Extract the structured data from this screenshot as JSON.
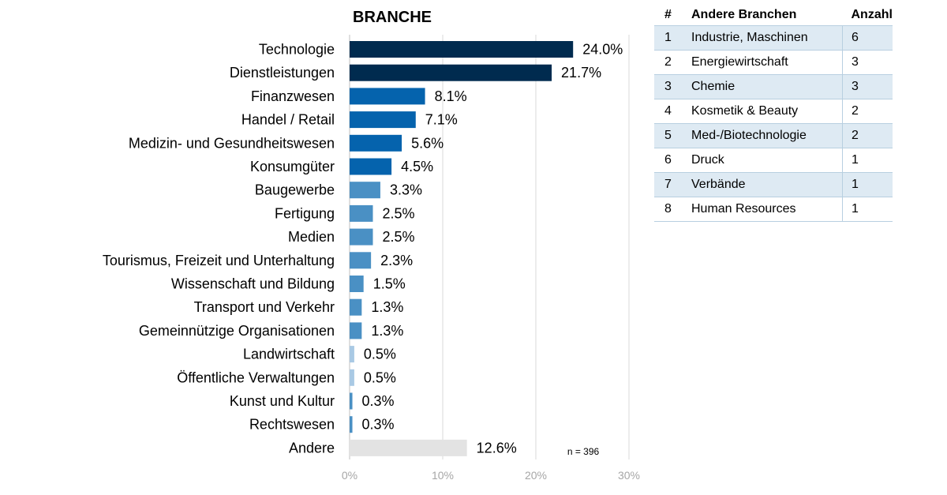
{
  "chart_data": {
    "type": "bar",
    "orientation": "horizontal",
    "title": "BRANCHE",
    "categories": [
      "Technologie",
      "Dienstleistungen",
      "Finanzwesen",
      "Handel / Retail",
      "Medizin- und Gesundheitswesen",
      "Konsumgüter",
      "Baugewerbe",
      "Fertigung",
      "Medien",
      "Tourismus, Freizeit und Unterhaltung",
      "Wissenschaft und Bildung",
      "Transport und Verkehr",
      "Gemeinnützige Organisationen",
      "Landwirtschaft",
      "Öffentliche Verwaltungen",
      "Kunst und Kultur",
      "Rechtswesen",
      "Andere"
    ],
    "values": [
      24.0,
      21.7,
      8.1,
      7.1,
      5.6,
      4.5,
      3.3,
      2.5,
      2.5,
      2.3,
      1.5,
      1.3,
      1.3,
      0.5,
      0.5,
      0.3,
      0.3,
      12.6
    ],
    "value_labels": [
      "24.0%",
      "21.7%",
      "8.1%",
      "7.1%",
      "5.6%",
      "4.5%",
      "3.3%",
      "2.5%",
      "2.5%",
      "2.3%",
      "1.5%",
      "1.3%",
      "1.3%",
      "0.5%",
      "0.5%",
      "0.3%",
      "0.3%",
      "12.6%"
    ],
    "bar_colors": [
      "#002b4f",
      "#002b4f",
      "#0563ad",
      "#0563ad",
      "#0563ad",
      "#0563ad",
      "#4a90c4",
      "#4a90c4",
      "#4a90c4",
      "#4a90c4",
      "#4a90c4",
      "#4a90c4",
      "#4a90c4",
      "#a9c9e4",
      "#a9c9e4",
      "#4a90c4",
      "#4a90c4",
      "#e3e3e3"
    ],
    "xlim": [
      0,
      30
    ],
    "xticks": [
      0,
      10,
      20,
      30
    ],
    "xtick_labels": [
      "0%",
      "10%",
      "20%",
      "30%"
    ],
    "grid": true,
    "note": "n = 396"
  },
  "table": {
    "headers": [
      "#",
      "Andere Branchen",
      "Anzahl"
    ],
    "rows": [
      [
        "1",
        "Industrie, Maschinen",
        "6"
      ],
      [
        "2",
        "Energiewirtschaft",
        "3"
      ],
      [
        "3",
        "Chemie",
        "3"
      ],
      [
        "4",
        "Kosmetik & Beauty",
        "2"
      ],
      [
        "5",
        "Med-/Biotechnologie",
        "2"
      ],
      [
        "6",
        "Druck",
        "1"
      ],
      [
        "7",
        "Verbände",
        "1"
      ],
      [
        "8",
        "Human Resources",
        "1"
      ]
    ],
    "shaded_rows": [
      0,
      2,
      4,
      6
    ]
  }
}
